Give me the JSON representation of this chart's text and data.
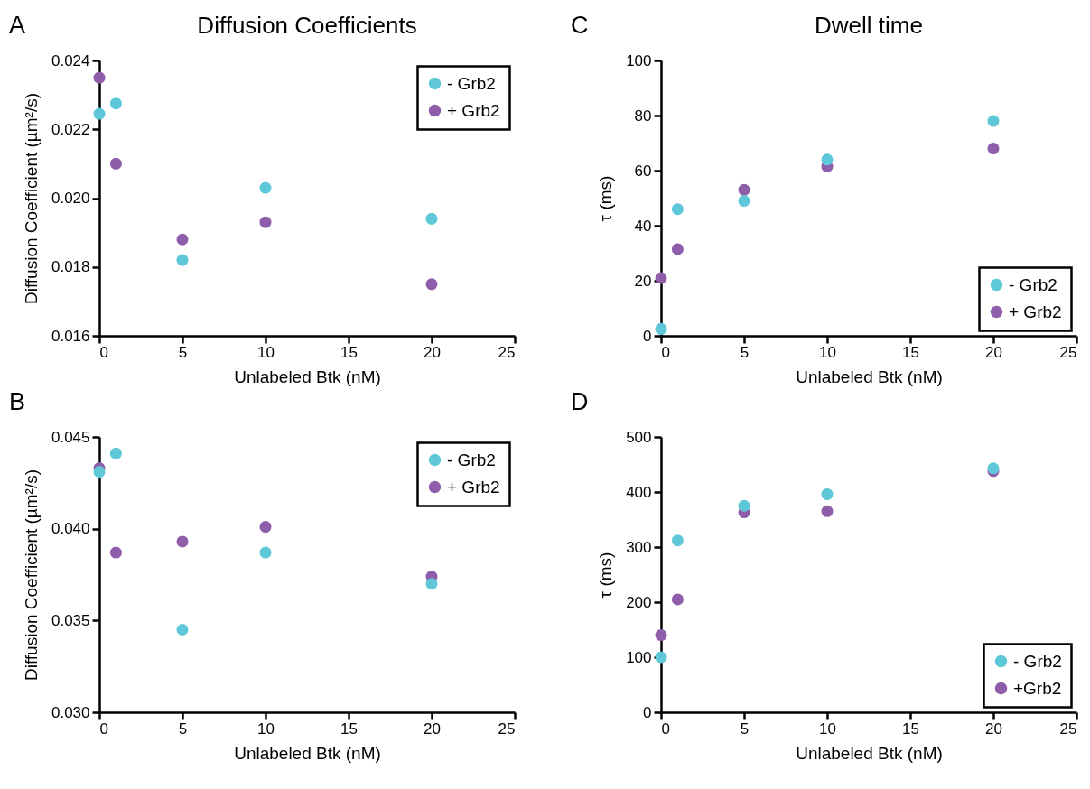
{
  "chart_data": [
    {
      "type": "scatter",
      "title": "Diffusion Coefficients",
      "annotations": [
        "A"
      ],
      "xlabel": "Unlabeled Btk (nM)",
      "ylabel": "Diffusion Coefficient (µm²/s)",
      "x": [
        0,
        1,
        5,
        10,
        20
      ],
      "xlim": [
        0,
        25
      ],
      "xticks": [
        0,
        5,
        10,
        15,
        20,
        25
      ],
      "ylim": [
        0.016,
        0.024
      ],
      "yticks": [
        {
          "value": 0.016,
          "label": "0.016"
        },
        {
          "value": 0.018,
          "label": "0.018"
        },
        {
          "value": 0.02,
          "label": "0.020"
        },
        {
          "value": 0.022,
          "label": "0.022"
        },
        {
          "value": 0.024,
          "label": "0.024"
        }
      ],
      "legend": "top right",
      "marker": "circle",
      "grid": false,
      "series": [
        {
          "name": "- Grb2",
          "color": "#5fc8d8",
          "values": [
            0.02245,
            0.02275,
            0.0182,
            0.0203,
            0.0194
          ]
        },
        {
          "name": "+ Grb2",
          "color": "#8e5eaa",
          "values": [
            0.0235,
            0.021,
            0.0188,
            0.0193,
            0.0175
          ]
        }
      ]
    },
    {
      "type": "scatter",
      "title": "Dwell time",
      "annotations": [
        "C"
      ],
      "xlabel": "Unlabeled Btk (nM)",
      "ylabel": "τ (ms)",
      "x": [
        0,
        1,
        5,
        10,
        20
      ],
      "xlim": [
        0,
        25
      ],
      "xticks": [
        0,
        5,
        10,
        15,
        20,
        25
      ],
      "ylim": [
        0,
        100
      ],
      "yticks": [
        0,
        20,
        40,
        60,
        80,
        100
      ],
      "legend": "bottom right",
      "marker": "circle",
      "grid": false,
      "series": [
        {
          "name": "- Grb2",
          "color": "#5fc8d8",
          "values": [
            2.5,
            46,
            49,
            64,
            78
          ]
        },
        {
          "name": "+ Grb2",
          "color": "#8e5eaa",
          "values": [
            21,
            31.5,
            53,
            61.5,
            68
          ]
        }
      ]
    },
    {
      "type": "scatter",
      "annotations": [
        "B"
      ],
      "xlabel": "Unlabeled Btk (nM)",
      "ylabel": "Diffusion Coefficient (µm²/s)",
      "x": [
        0,
        1,
        5,
        10,
        20
      ],
      "xlim": [
        0,
        25
      ],
      "xticks": [
        0,
        5,
        10,
        15,
        20,
        25
      ],
      "ylim": [
        0.03,
        0.045
      ],
      "yticks": [
        {
          "value": 0.03,
          "label": "0.030"
        },
        {
          "value": 0.035,
          "label": "0.035"
        },
        {
          "value": 0.04,
          "label": "0.040"
        },
        {
          "value": 0.045,
          "label": "0.045"
        }
      ],
      "legend": "top right",
      "marker": "circle",
      "grid": false,
      "series": [
        {
          "name": "- Grb2",
          "color": "#5fc8d8",
          "values": [
            0.0431,
            0.0441,
            0.0345,
            0.0387,
            0.037
          ]
        },
        {
          "name": "+ Grb2",
          "color": "#8e5eaa",
          "values": [
            0.0433,
            0.0387,
            0.0393,
            0.0401,
            0.0374
          ]
        }
      ]
    },
    {
      "type": "scatter",
      "annotations": [
        "D"
      ],
      "xlabel": "Unlabeled Btk (nM)",
      "ylabel": "τ (ms)",
      "x": [
        0,
        1,
        5,
        10,
        20
      ],
      "xlim": [
        0,
        25
      ],
      "xticks": [
        0,
        5,
        10,
        15,
        20,
        25
      ],
      "ylim": [
        0,
        500
      ],
      "yticks": [
        0,
        100,
        200,
        300,
        400,
        500
      ],
      "legend": "bottom right",
      "marker": "circle",
      "grid": false,
      "series": [
        {
          "name": "- Grb2",
          "color": "#5fc8d8",
          "values": [
            100,
            312,
            375,
            396,
            443
          ]
        },
        {
          "name": "+Grb2",
          "color": "#8e5eaa",
          "values": [
            140,
            205,
            363,
            365,
            438
          ]
        }
      ]
    }
  ]
}
